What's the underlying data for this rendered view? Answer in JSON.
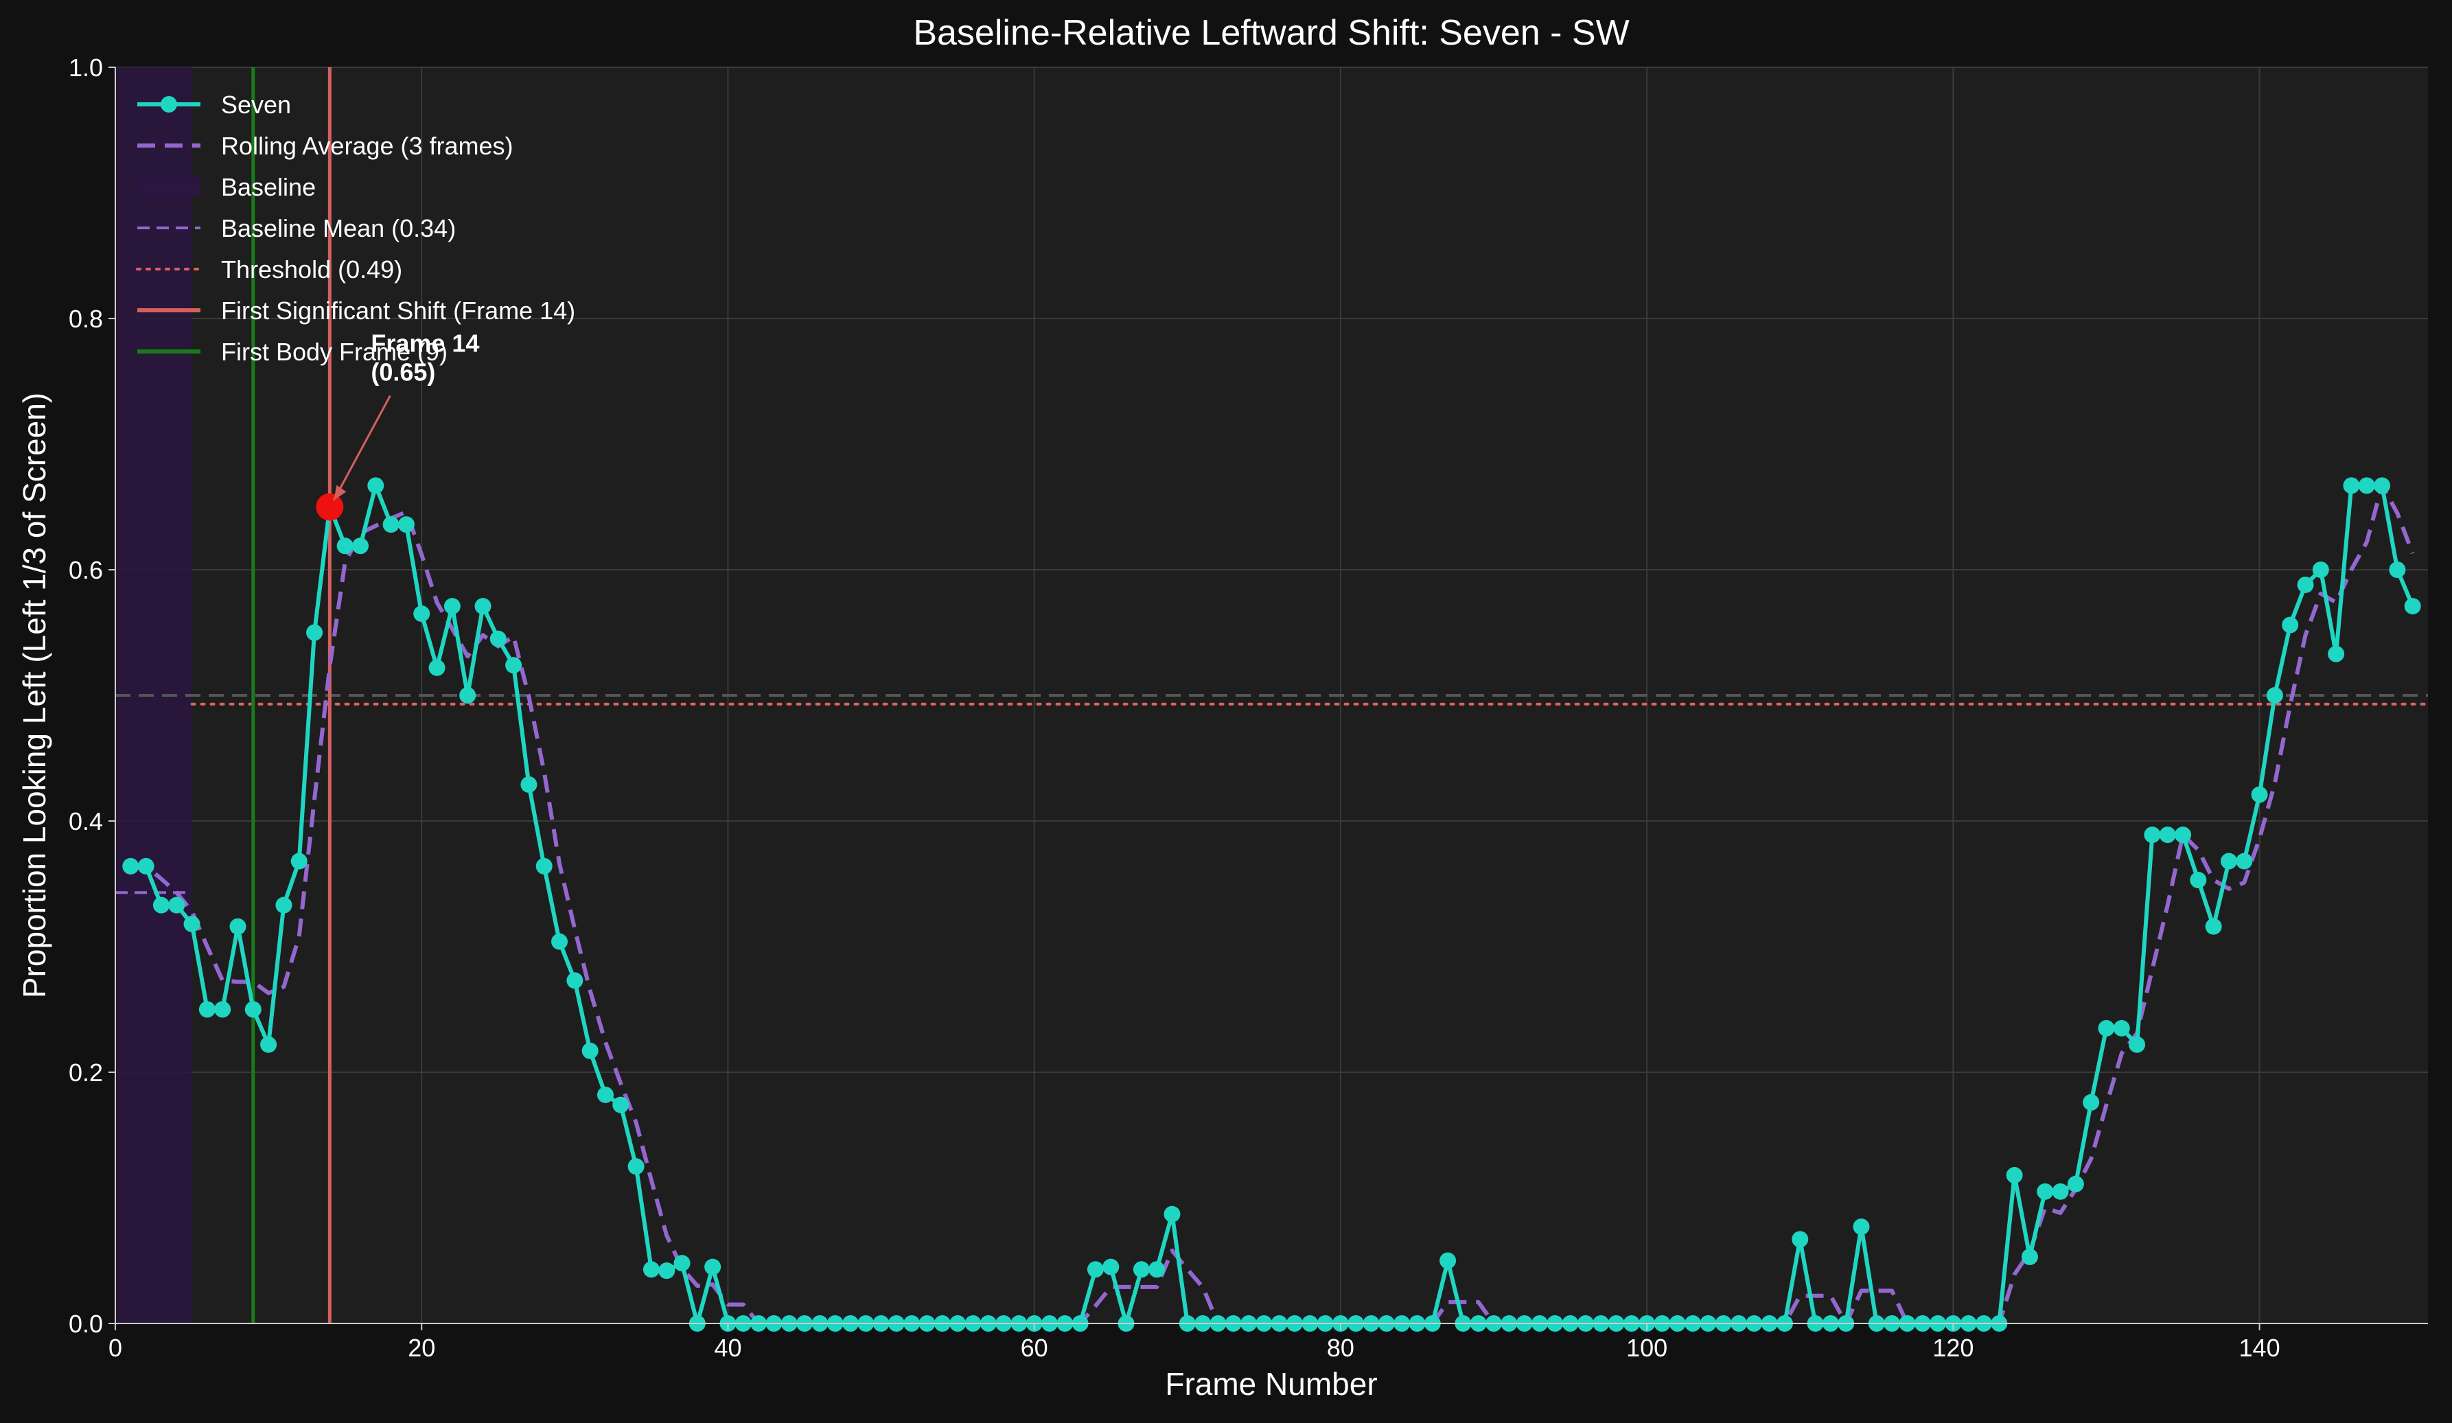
{
  "chart_data": {
    "type": "line",
    "title": "Baseline-Relative Leftward Shift: Seven - SW",
    "xlabel": "Frame Number",
    "ylabel": "Proportion Looking Left (Left 1/3 of Screen)",
    "xlim": [
      0,
      151
    ],
    "ylim": [
      0,
      1.0
    ],
    "xticks": [
      0,
      20,
      40,
      60,
      80,
      100,
      120,
      140
    ],
    "xtick_labels": [
      "0",
      "20",
      "40",
      "60",
      "80",
      "100",
      "120",
      "140"
    ],
    "yticks": [
      0.0,
      0.2,
      0.4,
      0.6,
      0.8,
      1.0
    ],
    "ytick_labels": [
      "0.0",
      "0.2",
      "0.4",
      "0.6",
      "0.8",
      "1.0"
    ],
    "grid": true,
    "legend_position": "top-left",
    "colors": {
      "figure_bg": "#111111",
      "axes_bg": "#1e1e1e",
      "series": "#1fd6c2",
      "rolling": "#9467d0",
      "baseline_shade": "#2a1640",
      "threshold": "#e06060",
      "shift_line": "#d45f5f",
      "body_line": "#1a7a1a",
      "half_line": "#555555",
      "highlight": "#ee1111"
    },
    "series": [
      {
        "name": "Seven",
        "x": [
          1,
          2,
          3,
          4,
          5,
          6,
          7,
          8,
          9,
          10,
          11,
          12,
          13,
          14,
          15,
          16,
          17,
          18,
          19,
          20,
          21,
          22,
          23,
          24,
          25,
          26,
          27,
          28,
          29,
          30,
          31,
          32,
          33,
          34,
          35,
          36,
          37,
          38,
          39,
          40,
          41,
          42,
          43,
          44,
          45,
          46,
          47,
          48,
          49,
          50,
          51,
          52,
          53,
          54,
          55,
          56,
          57,
          58,
          59,
          60,
          61,
          62,
          63,
          64,
          65,
          66,
          67,
          68,
          69,
          70,
          71,
          72,
          73,
          74,
          75,
          76,
          77,
          78,
          79,
          80,
          81,
          82,
          83,
          84,
          85,
          86,
          87,
          88,
          89,
          90,
          91,
          92,
          93,
          94,
          95,
          96,
          97,
          98,
          99,
          100,
          101,
          102,
          103,
          104,
          105,
          106,
          107,
          108,
          109,
          110,
          111,
          112,
          113,
          114,
          115,
          116,
          117,
          118,
          119,
          120,
          121,
          122,
          123,
          124,
          125,
          126,
          127,
          128,
          129,
          130,
          131,
          132,
          133,
          134,
          135,
          136,
          137,
          138,
          139,
          140,
          141,
          142,
          143,
          144,
          145,
          146,
          147,
          148,
          149,
          150
        ],
        "y": [
          0.364,
          0.364,
          0.333,
          0.333,
          0.318,
          0.25,
          0.25,
          0.316,
          0.25,
          0.222,
          0.333,
          0.368,
          0.55,
          0.65,
          0.619,
          0.619,
          0.667,
          0.636,
          0.636,
          0.565,
          0.522,
          0.571,
          0.5,
          0.571,
          0.545,
          0.524,
          0.429,
          0.364,
          0.304,
          0.273,
          0.217,
          0.182,
          0.174,
          0.125,
          0.043,
          0.042,
          0.048,
          0.0,
          0.045,
          0.0,
          0.0,
          0.0,
          0.0,
          0.0,
          0.0,
          0.0,
          0.0,
          0.0,
          0.0,
          0.0,
          0.0,
          0.0,
          0.0,
          0.0,
          0.0,
          0.0,
          0.0,
          0.0,
          0.0,
          0.0,
          0.0,
          0.0,
          0.0,
          0.043,
          0.045,
          0.0,
          0.043,
          0.043,
          0.087,
          0.0,
          0.0,
          0.0,
          0.0,
          0.0,
          0.0,
          0.0,
          0.0,
          0.0,
          0.0,
          0.0,
          0.0,
          0.0,
          0.0,
          0.0,
          0.0,
          0.0,
          0.05,
          0.0,
          0.0,
          0.0,
          0.0,
          0.0,
          0.0,
          0.0,
          0.0,
          0.0,
          0.0,
          0.0,
          0.0,
          0.0,
          0.0,
          0.0,
          0.0,
          0.0,
          0.0,
          0.0,
          0.0,
          0.0,
          0.0,
          0.067,
          0.0,
          0.0,
          0.0,
          0.077,
          0.0,
          0.0,
          0.0,
          0.0,
          0.0,
          0.0,
          0.0,
          0.0,
          0.0,
          0.118,
          0.053,
          0.105,
          0.105,
          0.111,
          0.176,
          0.235,
          0.235,
          0.222,
          0.389,
          0.389,
          0.389,
          0.353,
          0.316,
          0.368,
          0.368,
          0.421,
          0.5,
          0.556,
          0.588,
          0.6,
          0.533,
          0.667,
          0.667,
          0.667,
          0.6,
          0.571
        ]
      },
      {
        "name": "Rolling Average (3 frames)",
        "x": [
          1,
          2,
          3,
          4,
          5,
          6,
          7,
          8,
          9,
          10,
          11,
          12,
          13,
          14,
          15,
          16,
          17,
          18,
          19,
          20,
          21,
          22,
          23,
          24,
          25,
          26,
          27,
          28,
          29,
          30,
          31,
          32,
          33,
          34,
          35,
          36,
          37,
          38,
          39,
          40,
          41,
          42,
          43,
          44,
          45,
          46,
          47,
          48,
          49,
          50,
          51,
          52,
          53,
          54,
          55,
          56,
          57,
          58,
          59,
          60,
          61,
          62,
          63,
          64,
          65,
          66,
          67,
          68,
          69,
          70,
          71,
          72,
          73,
          74,
          75,
          76,
          77,
          78,
          79,
          80,
          81,
          82,
          83,
          84,
          85,
          86,
          87,
          88,
          89,
          90,
          91,
          92,
          93,
          94,
          95,
          96,
          97,
          98,
          99,
          100,
          101,
          102,
          103,
          104,
          105,
          106,
          107,
          108,
          109,
          110,
          111,
          112,
          113,
          114,
          115,
          116,
          117,
          118,
          119,
          120,
          121,
          122,
          123,
          124,
          125,
          126,
          127,
          128,
          129,
          130,
          131,
          132,
          133,
          134,
          135,
          136,
          137,
          138,
          139,
          140,
          141,
          142,
          143,
          144,
          145,
          146,
          147,
          148,
          149,
          150
        ],
        "y": [
          0.364,
          0.364,
          0.354,
          0.343,
          0.328,
          0.3,
          0.273,
          0.272,
          0.272,
          0.263,
          0.268,
          0.308,
          0.417,
          0.523,
          0.606,
          0.629,
          0.635,
          0.641,
          0.646,
          0.612,
          0.574,
          0.553,
          0.531,
          0.548,
          0.539,
          0.547,
          0.499,
          0.439,
          0.366,
          0.314,
          0.265,
          0.224,
          0.191,
          0.16,
          0.114,
          0.07,
          0.044,
          0.03,
          0.031,
          0.015,
          0.015,
          0.0,
          0.0,
          0.0,
          0.0,
          0.0,
          0.0,
          0.0,
          0.0,
          0.0,
          0.0,
          0.0,
          0.0,
          0.0,
          0.0,
          0.0,
          0.0,
          0.0,
          0.0,
          0.0,
          0.0,
          0.0,
          0.0,
          0.014,
          0.029,
          0.029,
          0.029,
          0.029,
          0.058,
          0.043,
          0.029,
          0.0,
          0.0,
          0.0,
          0.0,
          0.0,
          0.0,
          0.0,
          0.0,
          0.0,
          0.0,
          0.0,
          0.0,
          0.0,
          0.0,
          0.0,
          0.017,
          0.017,
          0.017,
          0.0,
          0.0,
          0.0,
          0.0,
          0.0,
          0.0,
          0.0,
          0.0,
          0.0,
          0.0,
          0.0,
          0.0,
          0.0,
          0.0,
          0.0,
          0.0,
          0.0,
          0.0,
          0.0,
          0.0,
          0.022,
          0.022,
          0.022,
          0.0,
          0.026,
          0.026,
          0.026,
          0.0,
          0.0,
          0.0,
          0.0,
          0.0,
          0.0,
          0.0,
          0.039,
          0.057,
          0.092,
          0.088,
          0.107,
          0.131,
          0.174,
          0.215,
          0.231,
          0.282,
          0.333,
          0.389,
          0.377,
          0.353,
          0.346,
          0.351,
          0.386,
          0.43,
          0.492,
          0.548,
          0.581,
          0.574,
          0.6,
          0.622,
          0.667,
          0.645,
          0.613
        ]
      }
    ],
    "reference_lines": {
      "baseline_region": {
        "label": "Baseline",
        "x_start": 0,
        "x_end": 5
      },
      "baseline_mean": {
        "label": "Baseline Mean (0.34)",
        "value": 0.343,
        "x_start": 0,
        "x_end": 5
      },
      "threshold": {
        "label": "Threshold (0.49)",
        "value": 0.493,
        "x_start": 5,
        "x_end": 151
      },
      "half_level": {
        "value": 0.5
      },
      "first_shift": {
        "label": "First Significant Shift (Frame 14)",
        "frame": 14
      },
      "first_body": {
        "label": "First Body Frame (9)",
        "frame": 9
      }
    },
    "annotation": {
      "line1": "Frame 14",
      "line2": "(0.65)",
      "point_x": 14,
      "point_y": 0.65
    },
    "legend": [
      {
        "label": "Seven",
        "kind": "series"
      },
      {
        "label": "Rolling Average (3 frames)",
        "kind": "rolling"
      },
      {
        "label": "Baseline",
        "kind": "patch"
      },
      {
        "label": "Baseline Mean (0.34)",
        "kind": "mean"
      },
      {
        "label": "Threshold (0.49)",
        "kind": "threshold"
      },
      {
        "label": "First Significant Shift (Frame 14)",
        "kind": "shift"
      },
      {
        "label": "First Body Frame (9)",
        "kind": "body"
      }
    ]
  }
}
